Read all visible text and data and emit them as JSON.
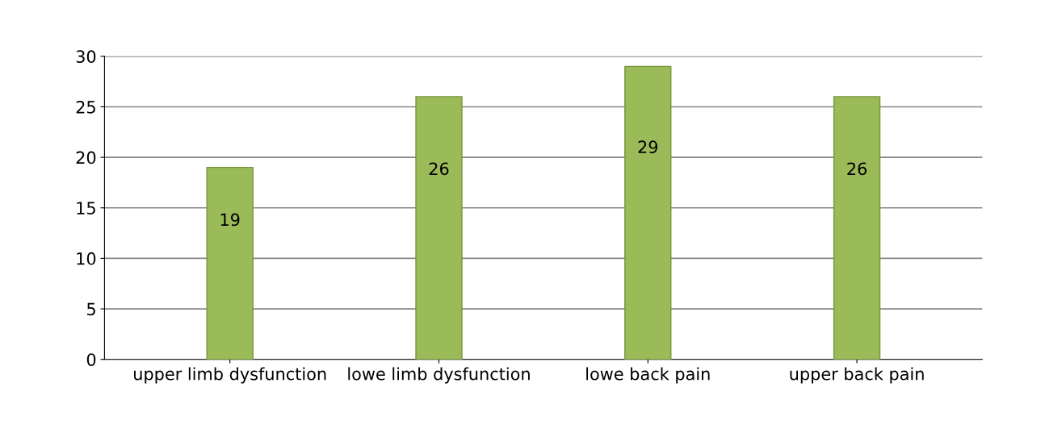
{
  "chart_data": {
    "type": "bar",
    "categories": [
      "upper limb dysfunction",
      "lowe limb dysfunction",
      "lowe back pain",
      "upper back pain"
    ],
    "values": [
      19,
      26,
      29,
      26
    ],
    "color": "#9bbb59",
    "ylim": [
      0,
      30
    ],
    "yticks": [
      0,
      5,
      10,
      15,
      20,
      25,
      30
    ],
    "grid": "y",
    "data_labels": true
  }
}
